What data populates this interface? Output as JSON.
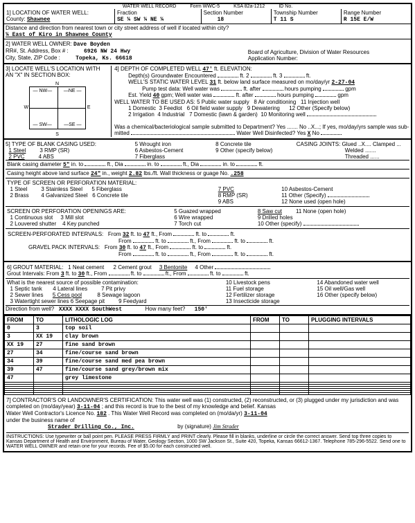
{
  "header": {
    "title": "WATER WELL RECORD",
    "form": "Form WWC-5",
    "ksa": "KSA 82a-1212",
    "idno": "ID No."
  },
  "loc": {
    "section_label": "1] LOCATION OF WATER WELL:",
    "county_label": "County:",
    "county": "Shawnee",
    "fraction_label": "Fraction",
    "fraction": "SE ¼ SW ¼ NE ¼",
    "section_num_label": "Section Number",
    "section_num": "18",
    "township_label": "Township Number",
    "township": "T 11 S",
    "range_label": "Range Number",
    "range": "R 15E E/W",
    "distance_label": "Distance and direction from nearest town or city street address of well if located within city?",
    "distance": "¼ East of Kiro in Shawnee County"
  },
  "owner": {
    "label": "2] WATER WELL OWNER:",
    "name": "Dave Boyden",
    "addr_label": "RR#, St. Address, Box #  :",
    "addr": "6926 NW 24 Hwy",
    "city_label": "City, State, ZIP Code  :",
    "city": "Topeka, Ks. 66618",
    "board": "Board of Agriculture, Division of Water Resources",
    "appno": "Application Number:"
  },
  "s3": {
    "label": "3] LOCATE WELL'S LOCATION WITH",
    "label2": "AN \"X\" IN SECTION BOX:"
  },
  "depth": {
    "label": "4] DEPTH OF COMPLETED WELL",
    "value": "47'",
    "elev": "ft. ELEVATION:",
    "gw": "Depth(s) Groundwater Encountered",
    "gw1": "ft. 2",
    "gw2": "ft. 3",
    "gw3": "ft.",
    "static": "WELL'S STATIC WATER LEVEL",
    "static_val": "31",
    "static_text": "ft. below land surface measured on mo/day/yr",
    "static_date": "2-27-04",
    "pump": "Pump test data: Well water was",
    "pump_after": "ft. after",
    "pump_hours": "hours pumping",
    "pump_gpm": "gpm",
    "yield": "Est. Yield",
    "yield_val": "40",
    "yield_gpm": "gpm; Well water was",
    "yield_after": "ft. after",
    "yield_hours": "hours pumping",
    "yield_gpm2": "gpm",
    "use": "WELL WATER TO BE USED AS:",
    "u1": "1 Domestic",
    "u2": "2 Irrigation",
    "u3": "3 Feedlot",
    "u4": "4 Industrial",
    "u5": "5 Public water supply",
    "u6": "6 Oil field water supply",
    "u7": "7 Domestic (lawn & garden)",
    "u8": "8 Air conditioning",
    "u9": "9 Dewatering",
    "u10": "10 Monitoring well",
    "u11": "11 Injection well",
    "u12": "12 Other (Specify below)",
    "chem": "Was a chemical/bacteriological sample submitted to Department? Yes ....... No ..X...; If yes, mo/day/yrs sample was sub-",
    "chem2": "mitted",
    "chem3": "Water Well Disinfected? Yes",
    "chem_x": "X",
    "chem4": "No"
  },
  "casing": {
    "label": "5] TYPE OF BLANK CASING USED:",
    "c1": "1 Steel",
    "c2": "2 PVC",
    "c3": "3 RMP (SR)",
    "c4": "4 ABS",
    "c5": "5 Wrought iron",
    "c6": "6 Asbestos-Cement",
    "c7": "7 Fiberglass",
    "c8": "8 Concrete tile",
    "c9": "9 Other (specify below)",
    "joints": "CASING JOINTS: Glued ..X.... Clamped ...",
    "joints2": "Welded .......",
    "joints3": "Threaded ......",
    "dia": "Blank casing diameter",
    "dia_val": "5\"",
    "dia_in": "in. to",
    "dia_ft": "ft., Dia",
    "dia_in2": "in. to",
    "dia_ft2": "ft., Dia",
    "dia_in3": "in. to",
    "dia_ft3": "ft.",
    "height": "Casing height above land surface",
    "height_val": "24\"",
    "height_in": "in., weight",
    "height_wt": "2.82",
    "height_lbs": "lbs./ft. Wall thickness or guage No.",
    "height_gauge": ".258",
    "screen": "TYPE OF SCREEN OR PERFORATION MATERIAL:",
    "s1": "1 Steel",
    "s2": "2 Brass",
    "s3": "3 Stainless Steel",
    "s4": "4 Galvanized Steel",
    "s5": "5 Fiberglass",
    "s6": "6 Concrete tile",
    "s7": "7 PVC",
    "s8": "8 RMP (SR)",
    "s9": "9 ABS",
    "s11": "11 Other (Specify)",
    "s12": "12 None used (open hole)",
    "open": "SCREEN OR PERFORATION OPENINGS ARE:",
    "o1": "1 Continuous slot",
    "o2": "2 Louvered shutter",
    "o3": "3 Mill slot",
    "o4": "4 Key punched",
    "o5": "5 Guazed wrapped",
    "o6": "6 Wire wrapped",
    "o7": "7 Torch cut",
    "o8": "8 Saw cut",
    "o9": "9 Drilled holes",
    "o10": "10 Other (specify)",
    "o11": "11 None (open hole)",
    "perf": "SCREEN-PERFORATED INTERVALS:",
    "perf_from": "From",
    "perf_from_val": "32",
    "perf_to": "ft. to",
    "perf_to_val": "47",
    "perf_ft": "ft., From",
    "perf_ft2": "ft. to",
    "perf_ft3": "ft.",
    "gravel": "GRAVEL PACK INTERVALS:",
    "gravel_from": "From",
    "gravel_from_val": "30",
    "gravel_to": "ft. to",
    "gravel_to_val": "47",
    "gravel_ft": "ft., From",
    "gravel_ft2": "ft. to",
    "gravel_ft3": "ft."
  },
  "grout": {
    "label": "6] GROUT MATERIAL:",
    "g1": "1 Neat cement",
    "g2": "2 Cement grout",
    "g3": "3 Bentonite",
    "g4": "4 Other",
    "intervals": "Grout Intervals: From",
    "from_val": "3",
    "to": "ft. to",
    "to_val": "30",
    "ft": "ft., From",
    "ft2": "ft. to",
    "ft3": "ft., From",
    "ft4": "ft. to",
    "ft5": "ft.",
    "source": "What is the nearest source of possible contamination:",
    "src1": "1 Septic tank",
    "src2": "2 Sewer lines",
    "src3": "3 Watertight sewer lines",
    "src4": "4 Lateral lines",
    "src5": "5 Cess pool",
    "src6": "6 Seepage pit",
    "src7": "7 Pit privy",
    "src8": "8 Sewage lagoon",
    "src9": "9 Feedyard",
    "src10": "10 Livestock pens",
    "src11": "11 Fuel storage",
    "src12": "12 Fertilizer storage",
    "src13": "13 Insecticide storage",
    "src14": "14 Abandoned water well",
    "src15": "15 Oil well/Gas well",
    "src16": "16 Other (specify below)",
    "dir": "Direction from well?",
    "dir_val": "XXXX XXXX SouthWest",
    "feet": "How many feet?",
    "feet_val": "150'"
  },
  "log": {
    "headers": {
      "from": "FROM",
      "to": "TO",
      "litho": "LITHOLOGIC LOG",
      "from2": "FROM",
      "to2": "TO",
      "plug": "PLUGGING INTERVALS"
    },
    "rows": [
      {
        "from": "0",
        "to": "3",
        "litho": "top soil"
      },
      {
        "from": "3",
        "to": "XX 19",
        "litho": "clay brown"
      },
      {
        "from": "XX 19",
        "to": "27",
        "litho": "fine sand brown"
      },
      {
        "from": "27",
        "to": "34",
        "litho": "fine/course sand brown"
      },
      {
        "from": "34",
        "to": "39",
        "litho": "fine/course sand med pea brown"
      },
      {
        "from": "39",
        "to": "47",
        "litho": "fine/course sand grey/brown mix"
      },
      {
        "from": "47",
        "to": "",
        "litho": "grey limestone"
      }
    ]
  },
  "cert": {
    "label": "7] CONTRACTOR'S OR LANDOWNER'S CERTIFICATION: This water well was (1) constructed, (2) reconstructed, or (3) plugged under my jurisdiction and was",
    "comp": "completed on (mo/day/year)",
    "comp_val": "3-11-04",
    "comp2": "; and this record is true to the best of my knowledge and belief. Kansas",
    "lic": "Water Well Contractor's Licence No.",
    "lic_val": "182",
    "lic2": ". This Water Well Record was completed on (mo/da/yr)",
    "lic_date": "3-11-04",
    "bus": "under the business name of",
    "bus_val": "Strader Drilling Co., Inc.",
    "sig_label": "by (signature)",
    "sig": "Jim Strader",
    "inst": "INSTRUCTIONS: Use typewriter or ball point pen. PLEASE PRESS FIRMLY and PRINT clearly. Please fill in blanks, underline or circle the correct answer. Send top three copies to Kansas Department of Health and Environment, Bureau of Water, Geology Section, 1000 SW Jackson St., Suite 420, Topeka, Kansas 66612-1367. Telephone 785-296-5522. Send one to WATER WELL OWNER and retain one for your records. Fee of $5.00 for each constructed well."
  }
}
